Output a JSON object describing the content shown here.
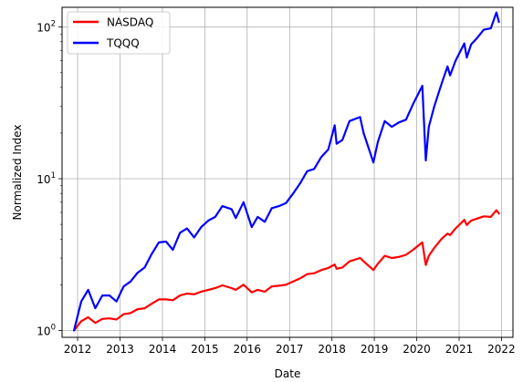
{
  "chart_data": {
    "type": "line",
    "xlabel": "Date",
    "ylabel": "Normalized Index",
    "y_scale": "log",
    "ylim": [
      0.9,
      135
    ],
    "xlim": [
      "2011-08-20",
      "2022-04-10"
    ],
    "grid": true,
    "legend_position": "upper left",
    "x_ticks": [
      {
        "date": "2012-01-01",
        "label": "2012"
      },
      {
        "date": "2013-01-01",
        "label": "2013"
      },
      {
        "date": "2014-01-01",
        "label": "2014"
      },
      {
        "date": "2015-01-01",
        "label": "2015"
      },
      {
        "date": "2016-01-01",
        "label": "2016"
      },
      {
        "date": "2017-01-01",
        "label": "2017"
      },
      {
        "date": "2018-01-01",
        "label": "2018"
      },
      {
        "date": "2019-01-01",
        "label": "2019"
      },
      {
        "date": "2020-01-01",
        "label": "2020"
      },
      {
        "date": "2021-01-01",
        "label": "2021"
      },
      {
        "date": "2022-01-01",
        "label": "2022"
      }
    ],
    "y_ticks": [
      {
        "value": 1,
        "base": "10",
        "exp": "0"
      },
      {
        "value": 10,
        "base": "10",
        "exp": "1"
      },
      {
        "value": 100,
        "base": "10",
        "exp": "2"
      }
    ],
    "series": [
      {
        "name": "NASDAQ",
        "color": "#ff0000",
        "x": [
          "2011-12-01",
          "2012-02-01",
          "2012-04-01",
          "2012-06-01",
          "2012-08-01",
          "2012-10-01",
          "2012-12-01",
          "2013-02-01",
          "2013-04-01",
          "2013-06-01",
          "2013-08-01",
          "2013-10-01",
          "2013-12-01",
          "2014-02-01",
          "2014-04-01",
          "2014-06-01",
          "2014-08-01",
          "2014-10-01",
          "2014-12-01",
          "2015-02-01",
          "2015-04-01",
          "2015-06-01",
          "2015-08-20",
          "2015-09-25",
          "2015-12-01",
          "2016-02-10",
          "2016-04-01",
          "2016-06-01",
          "2016-08-01",
          "2016-10-01",
          "2016-12-01",
          "2017-02-01",
          "2017-04-01",
          "2017-06-01",
          "2017-08-01",
          "2017-10-01",
          "2017-12-01",
          "2018-01-25",
          "2018-02-10",
          "2018-04-01",
          "2018-06-01",
          "2018-08-31",
          "2018-10-01",
          "2018-12-24",
          "2019-02-01",
          "2019-04-01",
          "2019-06-01",
          "2019-08-01",
          "2019-10-01",
          "2019-12-01",
          "2020-02-19",
          "2020-03-20",
          "2020-04-15",
          "2020-06-01",
          "2020-08-01",
          "2020-09-23",
          "2020-10-15",
          "2020-12-01",
          "2021-02-15",
          "2021-03-08",
          "2021-04-15",
          "2021-06-01",
          "2021-08-01",
          "2021-10-01",
          "2021-11-19",
          "2021-12-10"
        ],
        "values": [
          1.0,
          1.15,
          1.22,
          1.12,
          1.19,
          1.2,
          1.18,
          1.28,
          1.3,
          1.38,
          1.4,
          1.5,
          1.6,
          1.6,
          1.58,
          1.7,
          1.75,
          1.73,
          1.8,
          1.85,
          1.9,
          1.98,
          1.9,
          1.85,
          2.0,
          1.78,
          1.85,
          1.8,
          1.95,
          1.97,
          2.0,
          2.1,
          2.2,
          2.35,
          2.38,
          2.5,
          2.58,
          2.72,
          2.55,
          2.6,
          2.85,
          3.0,
          2.85,
          2.5,
          2.75,
          3.1,
          3.0,
          3.05,
          3.15,
          3.4,
          3.8,
          2.7,
          3.1,
          3.5,
          4.0,
          4.35,
          4.25,
          4.7,
          5.35,
          4.95,
          5.3,
          5.45,
          5.65,
          5.6,
          6.2,
          5.9
        ]
      },
      {
        "name": "TQQQ",
        "color": "#0000ff",
        "x": [
          "2011-12-01",
          "2012-02-01",
          "2012-04-01",
          "2012-06-01",
          "2012-08-01",
          "2012-10-01",
          "2012-12-01",
          "2013-02-01",
          "2013-04-01",
          "2013-06-01",
          "2013-08-01",
          "2013-10-01",
          "2013-12-01",
          "2014-02-01",
          "2014-04-01",
          "2014-06-01",
          "2014-08-01",
          "2014-10-01",
          "2014-12-01",
          "2015-02-01",
          "2015-04-01",
          "2015-06-01",
          "2015-08-20",
          "2015-09-25",
          "2015-12-01",
          "2016-02-10",
          "2016-04-01",
          "2016-06-01",
          "2016-08-01",
          "2016-10-01",
          "2016-12-01",
          "2017-02-01",
          "2017-04-01",
          "2017-06-01",
          "2017-08-01",
          "2017-10-01",
          "2017-12-01",
          "2018-01-25",
          "2018-02-10",
          "2018-04-01",
          "2018-06-01",
          "2018-08-31",
          "2018-10-01",
          "2018-12-24",
          "2019-02-01",
          "2019-04-01",
          "2019-06-01",
          "2019-08-01",
          "2019-10-01",
          "2019-12-01",
          "2020-02-19",
          "2020-03-20",
          "2020-04-15",
          "2020-06-01",
          "2020-08-01",
          "2020-09-23",
          "2020-10-15",
          "2020-12-01",
          "2021-02-15",
          "2021-03-08",
          "2021-04-15",
          "2021-06-01",
          "2021-08-01",
          "2021-10-01",
          "2021-11-19",
          "2021-12-10"
        ],
        "values": [
          1.0,
          1.55,
          1.85,
          1.4,
          1.7,
          1.7,
          1.55,
          1.95,
          2.1,
          2.4,
          2.6,
          3.2,
          3.8,
          3.85,
          3.4,
          4.4,
          4.7,
          4.1,
          4.8,
          5.3,
          5.6,
          6.6,
          6.3,
          5.5,
          7.0,
          4.8,
          5.6,
          5.2,
          6.4,
          6.6,
          6.9,
          8.0,
          9.3,
          11.2,
          11.6,
          13.9,
          15.6,
          22.5,
          17.0,
          18.0,
          24.0,
          25.5,
          20.0,
          12.8,
          17.5,
          24.0,
          22.0,
          23.5,
          24.5,
          31.0,
          41.0,
          13.2,
          22.0,
          30.0,
          42.0,
          55.0,
          48.0,
          60.0,
          78.0,
          63.0,
          77.0,
          84.0,
          96.0,
          98.0,
          125.0,
          108.0
        ]
      }
    ]
  }
}
